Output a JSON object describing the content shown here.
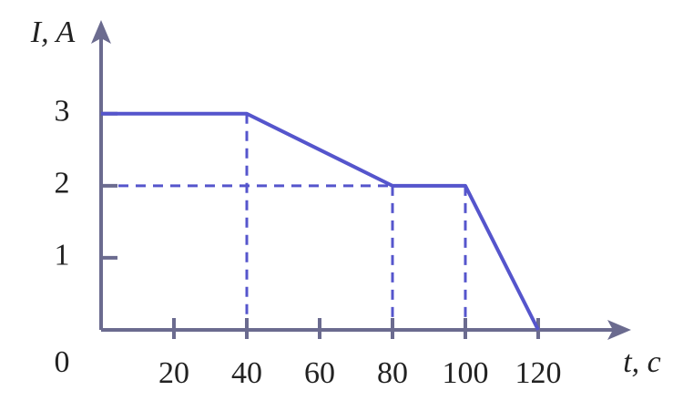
{
  "chart_data": {
    "type": "line",
    "x_label": "t, c",
    "y_label": "I, A",
    "x": [
      0,
      40,
      80,
      100,
      120
    ],
    "values": [
      3,
      3,
      2,
      2,
      0
    ],
    "color": "#5555cc",
    "axis_color": "#6b6b8f",
    "xlim": [
      0,
      145.5
    ],
    "ylim": [
      0,
      4.3
    ],
    "xticks": [
      0,
      20,
      40,
      60,
      80,
      100,
      120
    ],
    "yticks": [
      1,
      2,
      3
    ],
    "guides": true
  }
}
